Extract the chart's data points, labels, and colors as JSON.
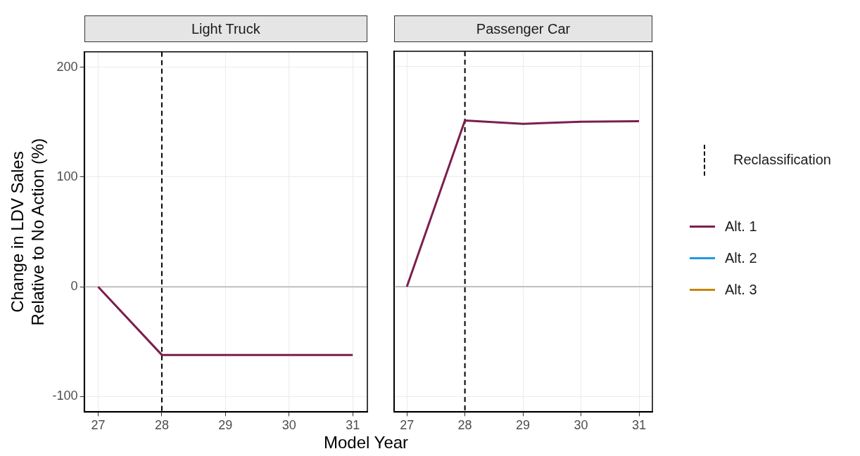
{
  "chart_data": [
    {
      "type": "line",
      "title": "Light Truck",
      "ylabel": "Change in LDV Sales\nRelative to No Action (%)",
      "xlabel": "Model Year",
      "x": [
        27,
        28,
        29,
        30,
        31
      ],
      "xlim": [
        26.78,
        31.23
      ],
      "xticks": [
        27,
        28,
        29,
        30,
        31
      ],
      "ylim": [
        -114,
        214
      ],
      "yticks": [
        -100,
        0,
        100,
        200
      ],
      "grid": true,
      "legend": false,
      "marker": "none",
      "series": [
        {
          "color": "#7b1f4f",
          "values": [
            0,
            -62,
            -62,
            -62,
            -62
          ]
        },
        {
          "color": "#1e9be0",
          "values": [
            null,
            null,
            null,
            null,
            null
          ]
        },
        {
          "color": "#c8860a",
          "values": [
            null,
            null,
            null,
            null,
            null
          ]
        }
      ],
      "ref_lines": [
        {
          "axis": "y",
          "value": 0,
          "color": "#bfbfbf",
          "line_style": "solid"
        },
        {
          "axis": "x",
          "value": 28,
          "color": "#000000",
          "line_style": "dashed"
        }
      ]
    },
    {
      "type": "line",
      "title": "Passenger Car",
      "x": [
        27,
        28,
        29,
        30,
        31
      ],
      "xlim": [
        26.78,
        31.23
      ],
      "xticks": [
        27,
        28,
        29,
        30,
        31
      ],
      "ylim": [
        -114,
        214
      ],
      "yticks": [
        -100,
        0,
        100,
        200
      ],
      "tick_labels": "x",
      "grid": true,
      "legend": "right",
      "marker": "none",
      "series": [
        {
          "name": "Alt. 1",
          "color": "#7b1f4f",
          "values": [
            0,
            151,
            148,
            150,
            150.5
          ]
        },
        {
          "name": "Alt. 2",
          "color": "#1e9be0",
          "values": [
            null,
            null,
            null,
            null,
            null
          ]
        },
        {
          "name": "Alt. 3",
          "color": "#c8860a",
          "values": [
            null,
            null,
            null,
            null,
            null
          ]
        }
      ],
      "ref_lines": [
        {
          "axis": "y",
          "value": 0,
          "color": "#bfbfbf",
          "line_style": "solid"
        },
        {
          "axis": "x",
          "value": 28,
          "color": "#000000",
          "line_style": "dashed",
          "label": "Reclassification"
        }
      ]
    }
  ]
}
